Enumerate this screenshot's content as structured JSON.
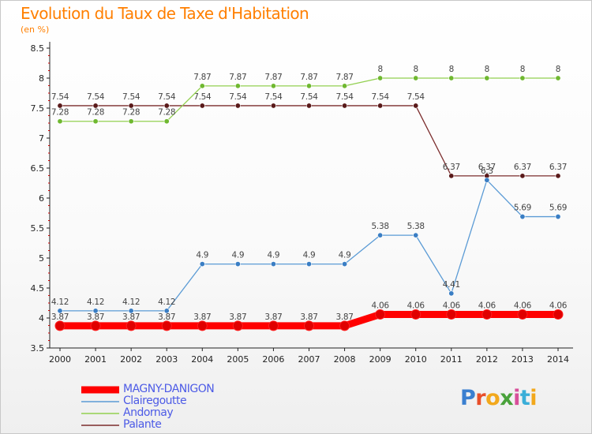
{
  "title": "Evolution du Taux de Taxe d'Habitation",
  "subtitle": "(en %)",
  "legend": [
    {
      "label": "MAGNY-DANIGON"
    },
    {
      "label": "Clairegoutte"
    },
    {
      "label": "Andornay"
    },
    {
      "label": "Palante"
    }
  ],
  "logo": {
    "text": "Proxiti",
    "colors": [
      "#3a7fd0",
      "#e84f2a",
      "#f2a81c",
      "#49a23b",
      "#d84f9a",
      "#3aaed8",
      "#f2a81c"
    ]
  },
  "chart_data": {
    "type": "line",
    "x": [
      2000,
      2001,
      2002,
      2003,
      2004,
      2005,
      2006,
      2007,
      2008,
      2009,
      2010,
      2011,
      2012,
      2013,
      2014
    ],
    "ylim": [
      3.5,
      8.5
    ],
    "yticks": [
      "3.5",
      "4",
      "4.5",
      "5",
      "5.5",
      "6",
      "6.5",
      "7",
      "7.5",
      "8",
      "8.5"
    ],
    "grid": false,
    "legend_position": "bottom-left",
    "series": [
      {
        "name": "MAGNY-DANIGON",
        "color": "#ff0000",
        "marker_color": "#e00000",
        "thick": true,
        "values": [
          3.87,
          3.87,
          3.87,
          3.87,
          3.87,
          3.87,
          3.87,
          3.87,
          3.87,
          4.06,
          4.06,
          4.06,
          4.06,
          4.06,
          4.06
        ],
        "labels": [
          "3.87",
          "3.87",
          "3.87",
          "3.87",
          "3.87",
          "3.87",
          "3.87",
          "3.87",
          "3.87",
          "4.06",
          "4.06",
          "4.06",
          "4.06",
          "4.06",
          "4.06"
        ]
      },
      {
        "name": "Clairegoutte",
        "color": "#5b9bd5",
        "marker_color": "#3a7ec4",
        "thick": false,
        "values": [
          4.12,
          4.12,
          4.12,
          4.12,
          4.9,
          4.9,
          4.9,
          4.9,
          4.9,
          5.38,
          5.38,
          4.41,
          6.3,
          5.69,
          5.69
        ],
        "labels": [
          "4.12",
          "4.12",
          "4.12",
          "4.12",
          "4.9",
          "4.9",
          "4.9",
          "4.9",
          "4.9",
          "5.38",
          "5.38",
          "4.41",
          "6.3",
          "5.69",
          "5.69"
        ]
      },
      {
        "name": "Andornay",
        "color": "#92d050",
        "marker_color": "#6fb830",
        "thick": false,
        "values": [
          7.28,
          7.28,
          7.28,
          7.28,
          7.87,
          7.87,
          7.87,
          7.87,
          7.87,
          8,
          8,
          8,
          8,
          8,
          8
        ],
        "labels": [
          "7.28",
          "7.28",
          "7.28",
          "7.28",
          "7.87",
          "7.87",
          "7.87",
          "7.87",
          "7.87",
          "8",
          "8",
          "8",
          "8",
          "8",
          "8"
        ]
      },
      {
        "name": "Palante",
        "color": "#7b2c2c",
        "marker_color": "#5a1a1a",
        "thick": false,
        "values": [
          7.54,
          7.54,
          7.54,
          7.54,
          7.54,
          7.54,
          7.54,
          7.54,
          7.54,
          7.54,
          7.54,
          6.37,
          6.37,
          6.37,
          6.37
        ],
        "labels": [
          "7.54",
          "7.54",
          "7.54",
          "7.54",
          "7.54",
          "7.54",
          "7.54",
          "7.54",
          "7.54",
          "7.54",
          "7.54",
          "6.37",
          "6.37",
          "6.37",
          "6.37"
        ]
      }
    ]
  }
}
